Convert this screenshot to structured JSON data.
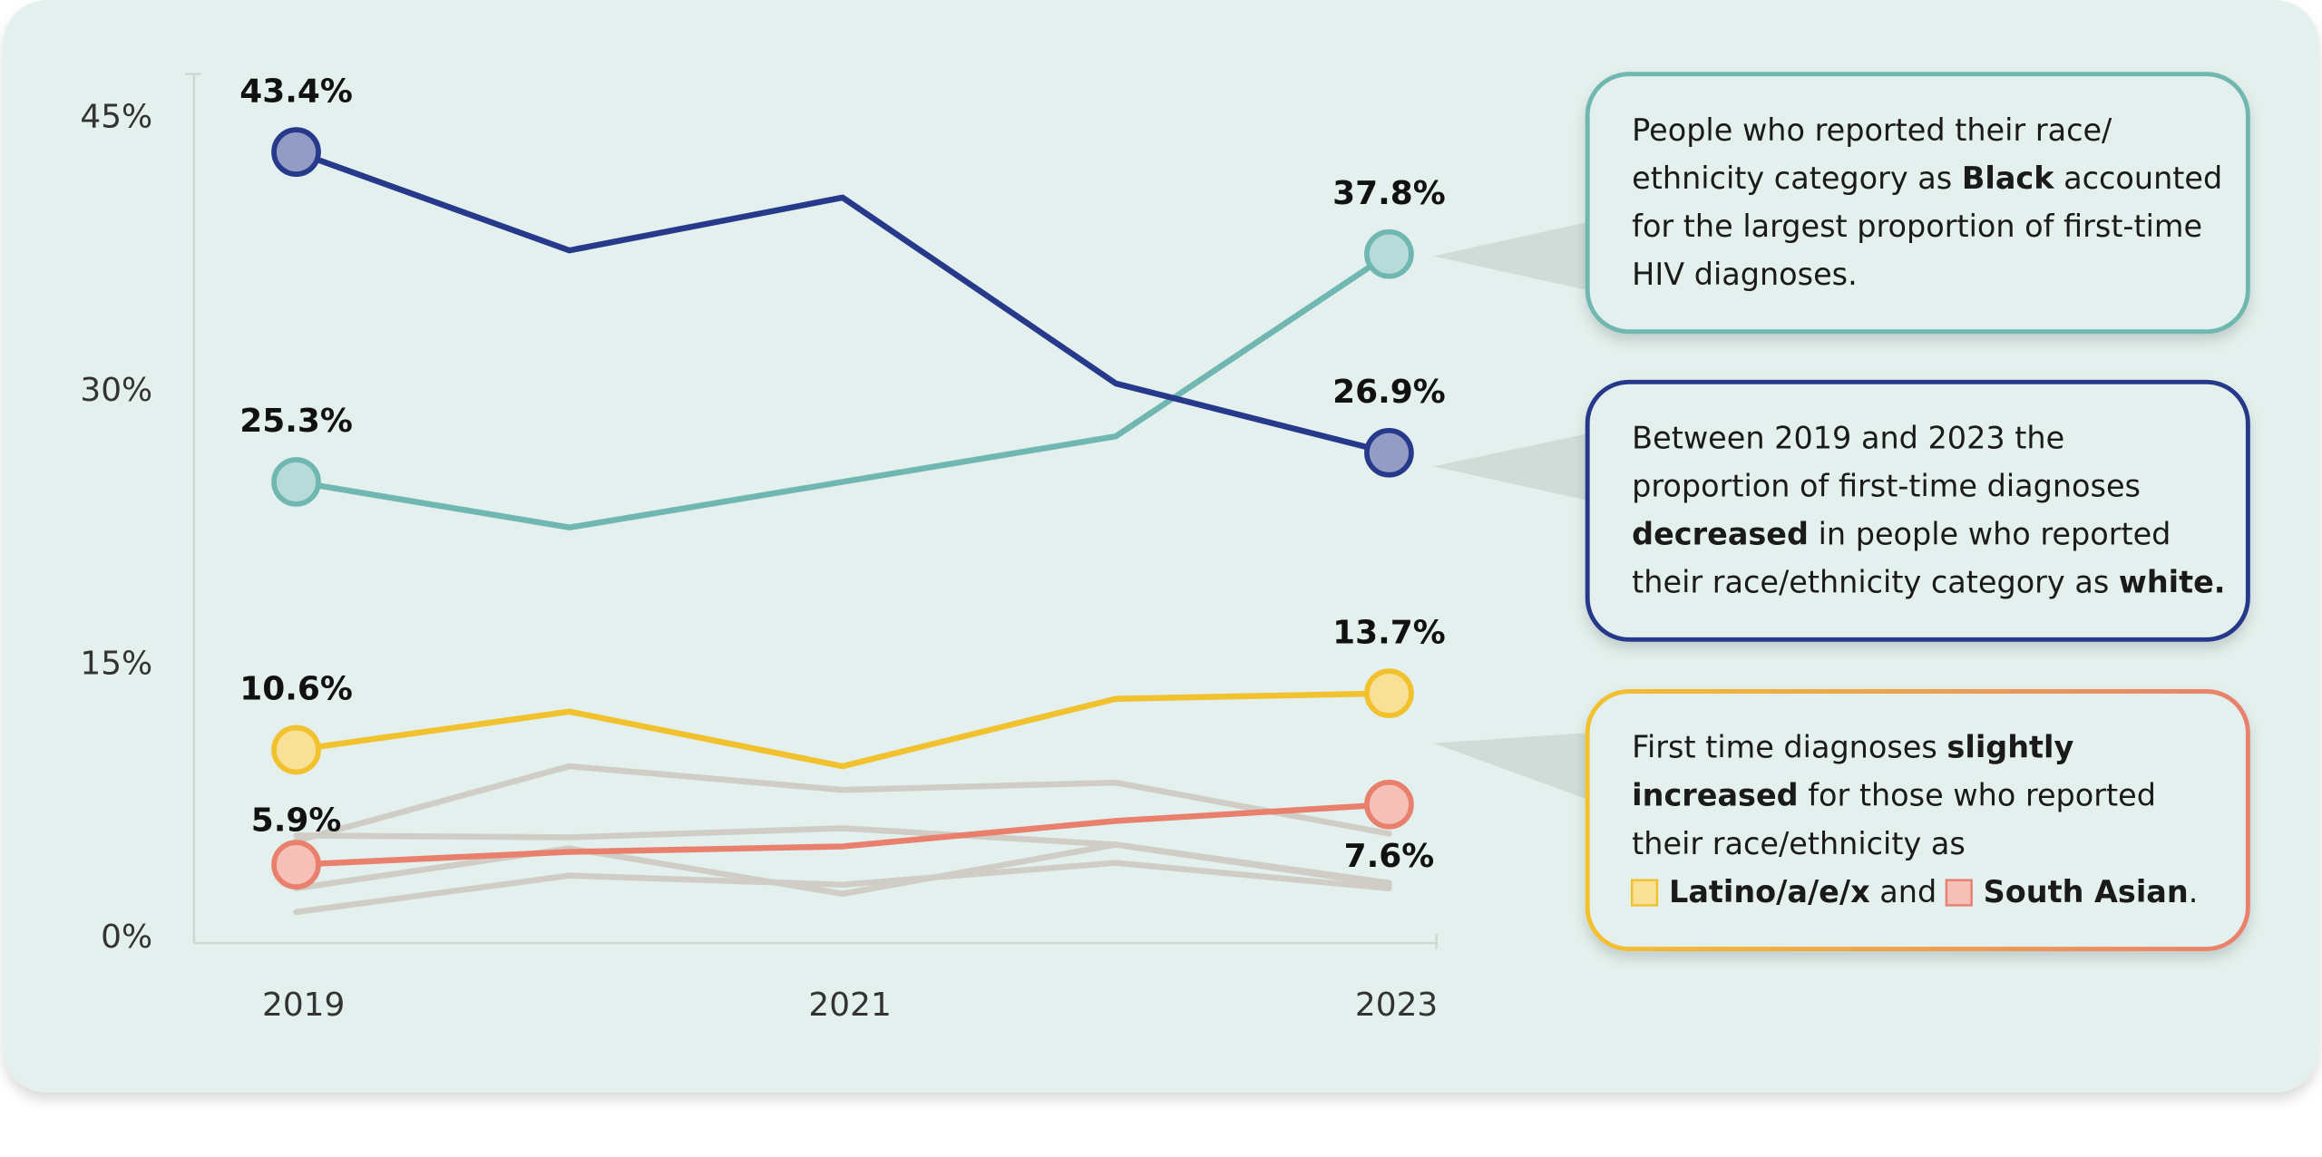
{
  "chart_data": {
    "type": "line",
    "categories": [
      "2019",
      null,
      "2021",
      null,
      "2023"
    ],
    "ylim": [
      0,
      48
    ],
    "yticks": [
      {
        "value": 0,
        "label": "0%"
      },
      {
        "value": 15,
        "label": "15%"
      },
      {
        "value": 30,
        "label": "30%"
      },
      {
        "value": 45,
        "label": "45%"
      }
    ],
    "grid": false,
    "series": [
      {
        "color": "#27398a",
        "values": [
          43.4,
          38.0,
          40.9,
          30.7,
          26.9
        ],
        "value_labels": [
          "43.4%",
          null,
          null,
          null,
          "26.9%"
        ]
      },
      {
        "color": "#6fb7b0",
        "values": [
          25.3,
          22.8,
          25.3,
          27.8,
          37.8
        ],
        "value_labels": [
          "25.3%",
          null,
          null,
          null,
          "37.8%"
        ]
      },
      {
        "color": "#f2c12e",
        "values": [
          10.6,
          12.7,
          9.7,
          13.4,
          13.7
        ],
        "value_labels": [
          "10.6%",
          null,
          null,
          null,
          "13.7%"
        ]
      },
      {
        "color": "#e9806e",
        "values": [
          4.3,
          5.0,
          5.3,
          6.7,
          7.6
        ],
        "value_labels": [
          null,
          null,
          null,
          null,
          "7.6%"
        ]
      },
      {
        "color": "#cfcdc5",
        "values": [
          5.9,
          5.8,
          6.3,
          5.4,
          3.3
        ],
        "value_labels": [
          "5.9%",
          null,
          null,
          null,
          null
        ]
      },
      {
        "color": "#cfcdc5",
        "values": [
          5.6,
          9.7,
          8.4,
          8.8,
          6.0
        ]
      },
      {
        "color": "#cfcdc5",
        "values": [
          3.0,
          5.2,
          2.7,
          5.4,
          3.2
        ]
      },
      {
        "color": "#cfcdc5",
        "values": [
          1.7,
          3.7,
          3.2,
          4.4,
          3.0
        ]
      }
    ]
  },
  "callouts": [
    {
      "lines": [
        [
          {
            "text": "People who reported their race/"
          }
        ],
        [
          {
            "text": "ethnicity category as "
          },
          {
            "text": "Black",
            "bold": true
          },
          {
            "text": " accounted"
          }
        ],
        [
          {
            "text": "for the largest proportion of first-time"
          }
        ],
        [
          {
            "text": "HIV diagnoses."
          }
        ]
      ]
    },
    {
      "lines": [
        [
          {
            "text": "Between 2019 and 2023 the"
          }
        ],
        [
          {
            "text": "proportion of first-time diagnoses"
          }
        ],
        [
          {
            "text": "decreased",
            "bold": true
          },
          {
            "text": " in people who reported"
          }
        ],
        [
          {
            "text": "their race/ethnicity category as "
          },
          {
            "text": "white.",
            "bold": true
          }
        ]
      ]
    },
    {
      "lines": [
        [
          {
            "text": "First time diagnoses "
          },
          {
            "text": "slightly",
            "bold": true
          }
        ],
        [
          {
            "text": "increased",
            "bold": true
          },
          {
            "text": " for those who reported"
          }
        ],
        [
          {
            "text": "their race/ethnicity as"
          }
        ],
        [
          {
            "text": "Latino/a/e/x",
            "bold": true
          },
          {
            "text": " and "
          },
          {
            "text": "South Asian",
            "bold": true
          },
          {
            "text": "."
          }
        ]
      ]
    }
  ]
}
